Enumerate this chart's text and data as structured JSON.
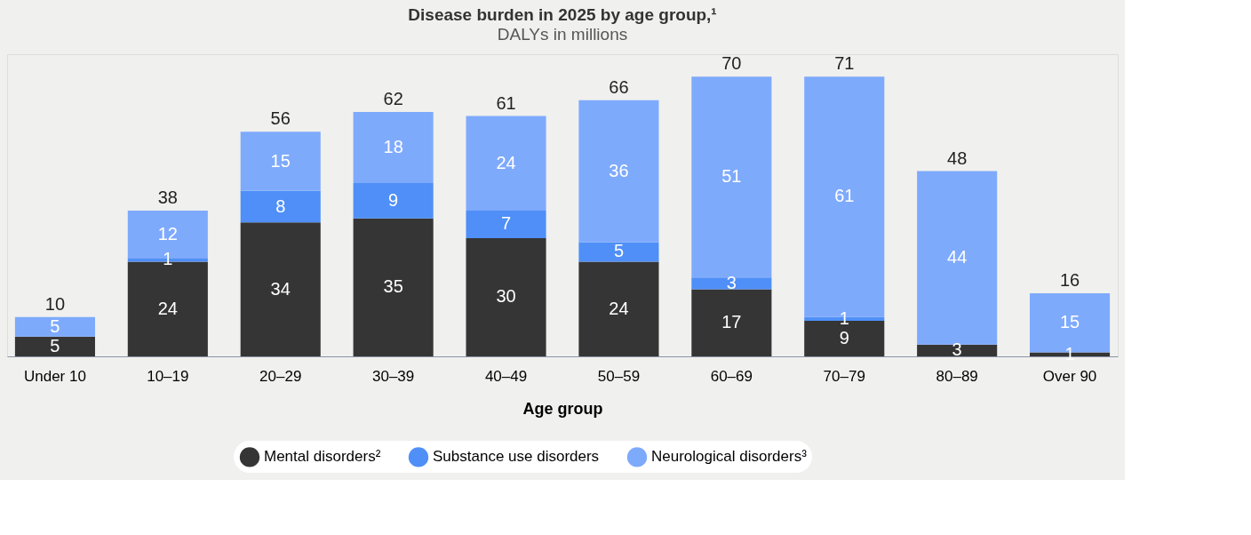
{
  "chart_data": {
    "type": "bar",
    "title": "Disease burden in 2025 by age group,¹",
    "subtitle": "DALYs in millions",
    "xlabel": "Age group",
    "categories": [
      "Under 10",
      "10–19",
      "20–29",
      "30–39",
      "40–49",
      "50–59",
      "60–69",
      "70–79",
      "80–89",
      "Over 90"
    ],
    "stacked": true,
    "data_labels": true,
    "legend": "bottom",
    "tick_labels": "x",
    "totals": [
      "10",
      "38",
      "56",
      "62",
      "61",
      "66",
      "70",
      "71",
      "48",
      "16"
    ],
    "series": [
      {
        "name": "Mental disorders²",
        "color": "#353535",
        "values": [
          5,
          24,
          34,
          35,
          30,
          24,
          17,
          9,
          3,
          1
        ]
      },
      {
        "name": "Substance use disorders",
        "color": "#4f8ff7",
        "values": [
          null,
          1,
          8,
          9,
          7,
          5,
          3,
          1,
          null,
          null
        ]
      },
      {
        "name": "Neurological disorders³",
        "color": "#7eaafc",
        "values": [
          5,
          12,
          15,
          18,
          24,
          36,
          51,
          61,
          44,
          15
        ]
      }
    ]
  }
}
